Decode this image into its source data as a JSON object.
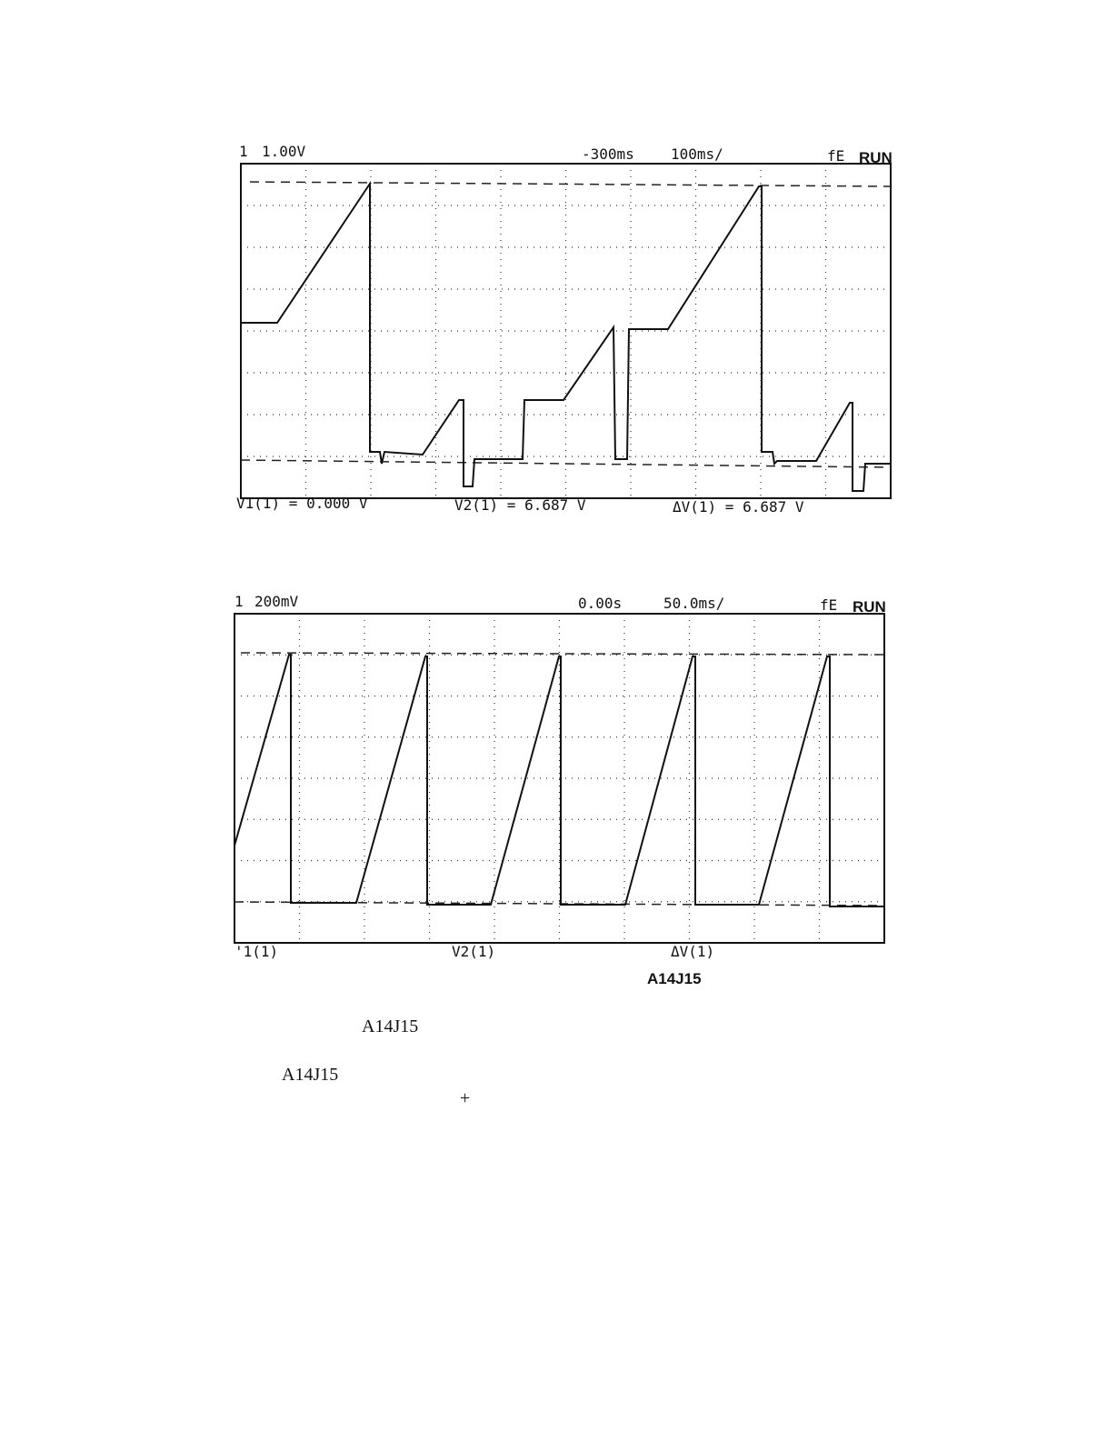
{
  "scope_top": {
    "channel": "1",
    "scale": "1.00V",
    "delay": "-300ms",
    "timebase": "100ms/",
    "trigger": "fE",
    "status": "RUN",
    "readouts": [
      "V1(1) = 0.000 V",
      "V2(1) = 6.687 V",
      "ΔV(1) = 6.687 V"
    ]
  },
  "scope_bottom": {
    "channel": "1",
    "scale": "200mV",
    "delay": "0.00s",
    "timebase": "50.0ms/",
    "trigger": "fE",
    "status": "RUN",
    "readouts": [
      "'1(1)",
      "V2(1)",
      "ΔV(1)"
    ]
  },
  "caption": "A14J15",
  "body": [
    "A14J15",
    "A14J15",
    "+"
  ]
}
